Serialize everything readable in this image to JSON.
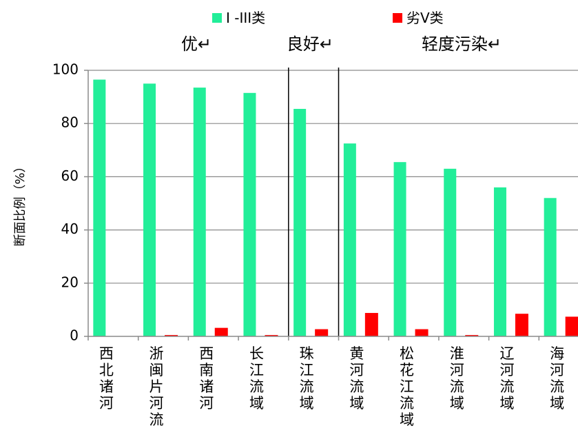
{
  "chart_data": {
    "type": "bar",
    "title": "",
    "xlabel": "",
    "ylabel": "断面比例（%）",
    "ylim": [
      0,
      100
    ],
    "yticks": [
      0,
      20,
      40,
      60,
      80,
      100
    ],
    "grid": true,
    "legend_position": "top",
    "categories": [
      "西北诸河",
      "浙闽片河流",
      "西南诸河",
      "长江流域",
      "珠江流域",
      "黄河流域",
      "松花江流域",
      "淮河流域",
      "辽河流域",
      "海河流域"
    ],
    "series": [
      {
        "name": "I -III类",
        "color": "#22ee99",
        "values": [
          96.5,
          95,
          93.5,
          91.5,
          85.5,
          72.5,
          65.5,
          63,
          56,
          52
        ]
      },
      {
        "name": "劣V类",
        "color": "#ff0000",
        "values": [
          0,
          0.5,
          3.2,
          0.5,
          2.7,
          8.8,
          2.7,
          0.5,
          8.5,
          7.4
        ]
      }
    ],
    "groups": [
      {
        "label": "优↵",
        "from": 0,
        "to": 3
      },
      {
        "label": "良好↵",
        "from": 4,
        "to": 4
      },
      {
        "label": "轻度污染↵",
        "from": 5,
        "to": 9
      }
    ]
  }
}
